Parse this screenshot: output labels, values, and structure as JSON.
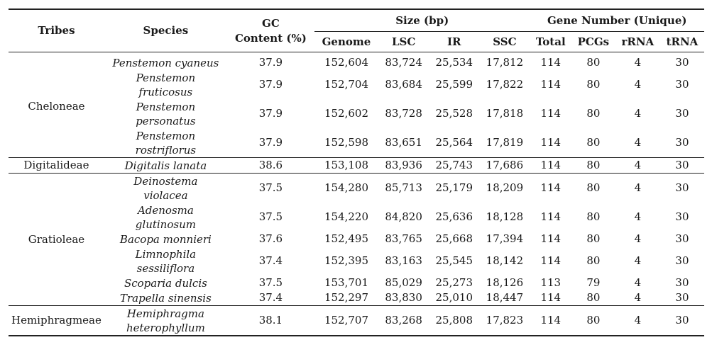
{
  "header": {
    "tribes": "Tribes",
    "species": "Species",
    "gc_line1": "GC",
    "gc_line2": "Content (%)",
    "size_group": "Size (bp)",
    "gene_group": "Gene Number (Unique)",
    "genome": "Genome",
    "lsc": "LSC",
    "ir": "IR",
    "ssc": "SSC",
    "total": "Total",
    "pcgs": "PCGs",
    "rrna": "rRNA",
    "trna": "tRNA"
  },
  "groups": [
    {
      "tribe": "Cheloneae",
      "rows": [
        {
          "species": "Penstemon cyaneus",
          "gc": "37.9",
          "genome": "152,604",
          "lsc": "83,724",
          "ir": "25,534",
          "ssc": "17,812",
          "total": "114",
          "pcgs": "80",
          "rrna": "4",
          "trna": "30"
        },
        {
          "species_l1": "Penstemon",
          "species_l2": "fruticosus",
          "gc": "37.9",
          "genome": "152,704",
          "lsc": "83,684",
          "ir": "25,599",
          "ssc": "17,822",
          "total": "114",
          "pcgs": "80",
          "rrna": "4",
          "trna": "30"
        },
        {
          "species_l1": "Penstemon",
          "species_l2": "personatus",
          "gc": "37.9",
          "genome": "152,602",
          "lsc": "83,728",
          "ir": "25,528",
          "ssc": "17,818",
          "total": "114",
          "pcgs": "80",
          "rrna": "4",
          "trna": "30"
        },
        {
          "species_l1": "Penstemon",
          "species_l2": "rostriflorus",
          "gc": "37.9",
          "genome": "152,598",
          "lsc": "83,651",
          "ir": "25,564",
          "ssc": "17,819",
          "total": "114",
          "pcgs": "80",
          "rrna": "4",
          "trna": "30"
        }
      ]
    },
    {
      "tribe": "Digitalideae",
      "rows": [
        {
          "species": "Digitalis lanata",
          "gc": "38.6",
          "genome": "153,108",
          "lsc": "83,936",
          "ir": "25,743",
          "ssc": "17,686",
          "total": "114",
          "pcgs": "80",
          "rrna": "4",
          "trna": "30"
        }
      ]
    },
    {
      "tribe": "Gratioleae",
      "rows": [
        {
          "species_l1": "Deinostema",
          "species_l2": "violacea",
          "gc": "37.5",
          "genome": "154,280",
          "lsc": "85,713",
          "ir": "25,179",
          "ssc": "18,209",
          "total": "114",
          "pcgs": "80",
          "rrna": "4",
          "trna": "30"
        },
        {
          "species_l1": "Adenosma",
          "species_l2": "glutinosum",
          "gc": "37.5",
          "genome": "154,220",
          "lsc": "84,820",
          "ir": "25,636",
          "ssc": "18,128",
          "total": "114",
          "pcgs": "80",
          "rrna": "4",
          "trna": "30"
        },
        {
          "species": "Bacopa monnieri",
          "gc": "37.6",
          "genome": "152,495",
          "lsc": "83,765",
          "ir": "25,668",
          "ssc": "17,394",
          "total": "114",
          "pcgs": "80",
          "rrna": "4",
          "trna": "30"
        },
        {
          "species_l1": "Limnophila",
          "species_l2": "sessiliflora",
          "gc": "37.4",
          "genome": "152,395",
          "lsc": "83,163",
          "ir": "25,545",
          "ssc": "18,142",
          "total": "114",
          "pcgs": "80",
          "rrna": "4",
          "trna": "30"
        },
        {
          "species": "Scoparia dulcis",
          "gc": "37.5",
          "genome": "153,701",
          "lsc": "85,029",
          "ir": "25,273",
          "ssc": "18,126",
          "total": "113",
          "pcgs": "79",
          "rrna": "4",
          "trna": "30"
        },
        {
          "species": "Trapella sinensis",
          "gc": "37.4",
          "genome": "152,297",
          "lsc": "83,830",
          "ir": "25,010",
          "ssc": "18,447",
          "total": "114",
          "pcgs": "80",
          "rrna": "4",
          "trna": "30"
        }
      ]
    },
    {
      "tribe": "Hemiphragmeae",
      "rows": [
        {
          "species_l1": "Hemiphragma",
          "species_l2": "heterophyllum",
          "gc": "38.1",
          "genome": "152,707",
          "lsc": "83,268",
          "ir": "25,808",
          "ssc": "17,823",
          "total": "114",
          "pcgs": "80",
          "rrna": "4",
          "trna": "30"
        }
      ]
    }
  ]
}
